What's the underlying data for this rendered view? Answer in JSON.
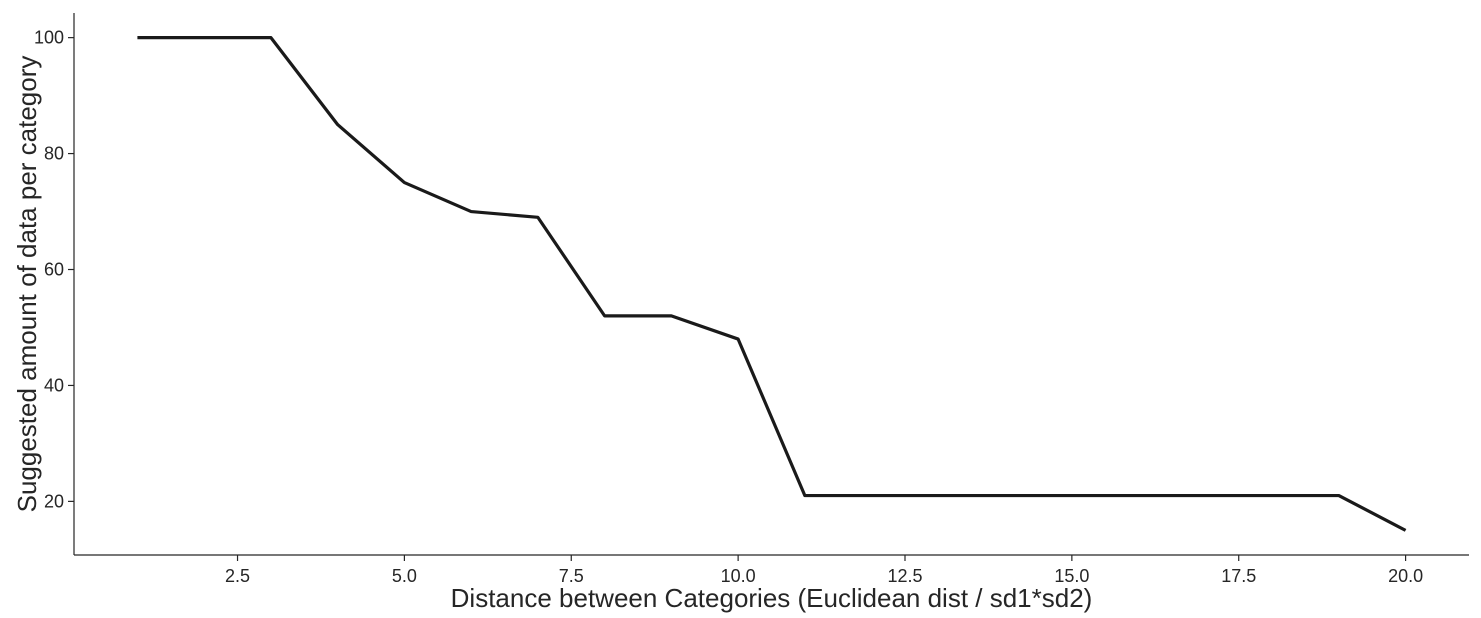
{
  "chart_data": {
    "type": "line",
    "title": "",
    "xlabel": "Distance between Categories (Euclidean dist / sd1*sd2)",
    "ylabel": "Suggested amount of data per category",
    "xlim": [
      0.05,
      20.95
    ],
    "ylim": [
      10.75,
      104.25
    ],
    "xticks": [
      2.5,
      5.0,
      7.5,
      10.0,
      12.5,
      15.0,
      17.5,
      20.0
    ],
    "xtick_labels": [
      "2.5",
      "5.0",
      "7.5",
      "10.0",
      "12.5",
      "15.0",
      "17.5",
      "20.0"
    ],
    "yticks": [
      20,
      40,
      60,
      80,
      100
    ],
    "ytick_labels": [
      "20",
      "40",
      "60",
      "80",
      "100"
    ],
    "grid": false,
    "legend": "none",
    "series": [
      {
        "color": "#1a1a1a",
        "x": [
          1,
          2,
          3,
          4,
          5,
          6,
          7,
          8,
          9,
          10,
          11,
          12,
          13,
          14,
          15,
          16,
          17,
          18,
          19,
          20
        ],
        "y": [
          100,
          100,
          100,
          85,
          75,
          70,
          69,
          52,
          52,
          48,
          21,
          21,
          21,
          21,
          21,
          21,
          21,
          21,
          21,
          15
        ]
      }
    ]
  }
}
